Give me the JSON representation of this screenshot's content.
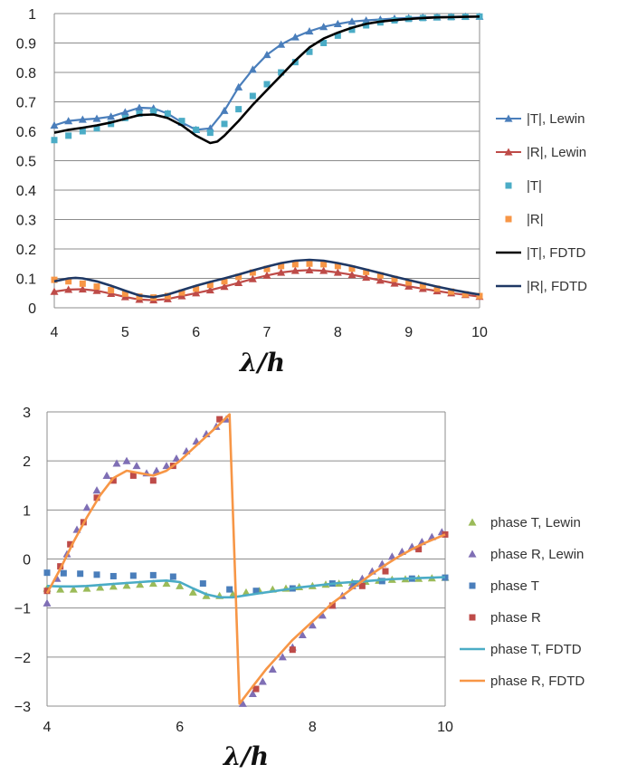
{
  "chart_data": [
    {
      "type": "line",
      "xlabel": "λ/h",
      "ylabel": "",
      "xlim": [
        4,
        10
      ],
      "ylim": [
        0,
        1
      ],
      "xticks": [
        4,
        5,
        6,
        7,
        8,
        9,
        10
      ],
      "yticks": [
        0,
        0.1,
        0.2,
        0.3,
        0.4,
        0.5,
        0.6,
        0.7,
        0.8,
        0.9,
        1
      ],
      "grid": "horizontal",
      "legend": "right",
      "series": [
        {
          "name": "|T|, Lewin",
          "style": "line-triangle",
          "color": "#4a7ebb",
          "x": [
            4.0,
            4.2,
            4.4,
            4.6,
            4.8,
            5.0,
            5.2,
            5.4,
            5.6,
            5.8,
            6.0,
            6.2,
            6.4,
            6.6,
            6.8,
            7.0,
            7.2,
            7.4,
            7.6,
            7.8,
            8.0,
            8.2,
            8.4,
            8.6,
            8.8,
            9.0,
            9.2,
            9.4,
            9.6,
            9.8,
            10.0
          ],
          "y": [
            0.62,
            0.635,
            0.64,
            0.643,
            0.65,
            0.665,
            0.68,
            0.678,
            0.66,
            0.63,
            0.605,
            0.61,
            0.67,
            0.75,
            0.81,
            0.86,
            0.895,
            0.92,
            0.94,
            0.955,
            0.965,
            0.973,
            0.977,
            0.98,
            0.983,
            0.985,
            0.987,
            0.988,
            0.989,
            0.99,
            0.99
          ]
        },
        {
          "name": "|R|, Lewin",
          "style": "line-triangle",
          "color": "#be4b48",
          "x": [
            4.0,
            4.2,
            4.4,
            4.6,
            4.8,
            5.0,
            5.2,
            5.4,
            5.6,
            5.8,
            6.0,
            6.2,
            6.4,
            6.6,
            6.8,
            7.0,
            7.2,
            7.4,
            7.6,
            7.8,
            8.0,
            8.2,
            8.4,
            8.6,
            8.8,
            9.0,
            9.2,
            9.4,
            9.6,
            9.8,
            10.0
          ],
          "y": [
            0.055,
            0.062,
            0.063,
            0.058,
            0.048,
            0.037,
            0.028,
            0.026,
            0.03,
            0.04,
            0.05,
            0.06,
            0.072,
            0.085,
            0.098,
            0.11,
            0.12,
            0.126,
            0.128,
            0.126,
            0.12,
            0.112,
            0.103,
            0.093,
            0.083,
            0.073,
            0.065,
            0.057,
            0.05,
            0.044,
            0.038
          ]
        },
        {
          "name": "|T|",
          "style": "square",
          "color": "#4bacc6",
          "x": [
            4.0,
            4.2,
            4.4,
            4.6,
            4.8,
            5.0,
            5.2,
            5.4,
            5.6,
            5.8,
            6.0,
            6.2,
            6.4,
            6.6,
            6.8,
            7.0,
            7.2,
            7.4,
            7.6,
            7.8,
            8.0,
            8.2,
            8.4,
            8.6,
            8.8,
            9.0,
            9.2,
            9.4,
            9.6,
            9.8,
            10.0
          ],
          "y": [
            0.57,
            0.585,
            0.6,
            0.61,
            0.625,
            0.645,
            0.66,
            0.668,
            0.66,
            0.635,
            0.605,
            0.595,
            0.625,
            0.675,
            0.72,
            0.76,
            0.8,
            0.835,
            0.87,
            0.9,
            0.925,
            0.945,
            0.96,
            0.97,
            0.977,
            0.982,
            0.985,
            0.987,
            0.988,
            0.989,
            0.99
          ]
        },
        {
          "name": "|R|",
          "style": "square",
          "color": "#f79646",
          "x": [
            4.0,
            4.2,
            4.4,
            4.6,
            4.8,
            5.0,
            5.2,
            5.4,
            5.6,
            5.8,
            6.0,
            6.2,
            6.4,
            6.6,
            6.8,
            7.0,
            7.2,
            7.4,
            7.6,
            7.8,
            8.0,
            8.2,
            8.4,
            8.6,
            8.8,
            9.0,
            9.2,
            9.4,
            9.6,
            9.8,
            10.0
          ],
          "y": [
            0.095,
            0.09,
            0.082,
            0.072,
            0.06,
            0.048,
            0.038,
            0.035,
            0.04,
            0.052,
            0.065,
            0.078,
            0.09,
            0.105,
            0.12,
            0.132,
            0.142,
            0.148,
            0.15,
            0.148,
            0.142,
            0.133,
            0.122,
            0.11,
            0.098,
            0.086,
            0.075,
            0.065,
            0.055,
            0.046,
            0.04
          ]
        },
        {
          "name": "|T|, FDTD",
          "style": "line",
          "color": "#000000",
          "x": [
            4.0,
            4.2,
            4.4,
            4.6,
            4.8,
            5.0,
            5.2,
            5.4,
            5.6,
            5.8,
            6.0,
            6.2,
            6.3,
            6.4,
            6.6,
            6.8,
            7.0,
            7.2,
            7.4,
            7.6,
            7.8,
            8.0,
            8.2,
            8.4,
            8.6,
            8.8,
            9.0,
            9.2,
            9.4,
            9.6,
            9.8,
            10.0
          ],
          "y": [
            0.595,
            0.605,
            0.612,
            0.62,
            0.63,
            0.642,
            0.655,
            0.657,
            0.645,
            0.62,
            0.585,
            0.56,
            0.565,
            0.585,
            0.635,
            0.69,
            0.74,
            0.79,
            0.84,
            0.885,
            0.915,
            0.935,
            0.952,
            0.965,
            0.973,
            0.978,
            0.982,
            0.985,
            0.987,
            0.988,
            0.989,
            0.99
          ]
        },
        {
          "name": "|R|, FDTD",
          "style": "line",
          "color": "#1f3864",
          "x": [
            4.0,
            4.2,
            4.3,
            4.4,
            4.6,
            4.8,
            5.0,
            5.2,
            5.4,
            5.6,
            5.8,
            6.0,
            6.2,
            6.4,
            6.6,
            6.8,
            7.0,
            7.2,
            7.4,
            7.6,
            7.8,
            8.0,
            8.2,
            8.4,
            8.6,
            8.8,
            9.0,
            9.2,
            9.4,
            9.6,
            9.8,
            10.0
          ],
          "y": [
            0.09,
            0.1,
            0.102,
            0.1,
            0.09,
            0.075,
            0.058,
            0.042,
            0.036,
            0.045,
            0.06,
            0.075,
            0.088,
            0.1,
            0.113,
            0.127,
            0.14,
            0.152,
            0.16,
            0.163,
            0.16,
            0.152,
            0.142,
            0.13,
            0.118,
            0.106,
            0.094,
            0.083,
            0.072,
            0.062,
            0.053,
            0.045
          ]
        }
      ]
    },
    {
      "type": "line",
      "xlabel": "λ/h",
      "ylabel": "",
      "xlim": [
        4,
        10
      ],
      "ylim": [
        -3,
        3
      ],
      "xticks": [
        4,
        6,
        8,
        10
      ],
      "yticks": [
        -3,
        -2,
        -1,
        0,
        1,
        2,
        3
      ],
      "grid": "horizontal",
      "legend": "right",
      "series": [
        {
          "name": "phase T, Lewin",
          "style": "triangle",
          "color": "#9bbb59",
          "x": [
            4.0,
            4.2,
            4.4,
            4.6,
            4.8,
            5.0,
            5.2,
            5.4,
            5.6,
            5.8,
            6.0,
            6.2,
            6.4,
            6.6,
            6.8,
            7.0,
            7.2,
            7.4,
            7.6,
            7.8,
            8.0,
            8.2,
            8.4,
            8.6,
            8.8,
            9.0,
            9.2,
            9.4,
            9.6,
            9.8,
            10.0
          ],
          "y": [
            -0.6,
            -0.62,
            -0.62,
            -0.6,
            -0.58,
            -0.56,
            -0.54,
            -0.52,
            -0.5,
            -0.5,
            -0.55,
            -0.68,
            -0.75,
            -0.75,
            -0.72,
            -0.68,
            -0.65,
            -0.62,
            -0.6,
            -0.57,
            -0.55,
            -0.52,
            -0.5,
            -0.48,
            -0.46,
            -0.44,
            -0.42,
            -0.41,
            -0.4,
            -0.39,
            -0.38
          ]
        },
        {
          "name": "phase R, Lewin",
          "style": "triangle",
          "color": "#7f6fb5",
          "x": [
            4.0,
            4.15,
            4.3,
            4.45,
            4.6,
            4.75,
            4.9,
            5.05,
            5.2,
            5.35,
            5.5,
            5.65,
            5.8,
            5.95,
            6.1,
            6.25,
            6.4,
            6.55,
            6.7,
            6.95,
            7.1,
            7.25,
            7.4,
            7.55,
            7.7,
            7.85,
            8.0,
            8.15,
            8.3,
            8.45,
            8.6,
            8.75,
            8.9,
            9.05,
            9.2,
            9.35,
            9.5,
            9.65,
            9.8,
            9.95
          ],
          "y": [
            -0.9,
            -0.4,
            0.1,
            0.6,
            1.05,
            1.4,
            1.7,
            1.95,
            2.0,
            1.9,
            1.75,
            1.8,
            1.9,
            2.05,
            2.2,
            2.4,
            2.55,
            2.7,
            2.85,
            -2.95,
            -2.75,
            -2.5,
            -2.25,
            -2.0,
            -1.8,
            -1.55,
            -1.35,
            -1.15,
            -0.95,
            -0.75,
            -0.55,
            -0.4,
            -0.25,
            -0.1,
            0.05,
            0.15,
            0.25,
            0.35,
            0.45,
            0.55
          ]
        },
        {
          "name": "phase T",
          "style": "square",
          "color": "#4a7ebb",
          "x": [
            4.0,
            4.25,
            4.5,
            4.75,
            5.0,
            5.3,
            5.6,
            5.9,
            6.35,
            6.75,
            7.15,
            7.7,
            8.3,
            8.65,
            9.05,
            9.5,
            10.0
          ],
          "y": [
            -0.28,
            -0.29,
            -0.3,
            -0.32,
            -0.35,
            -0.34,
            -0.33,
            -0.36,
            -0.5,
            -0.62,
            -0.65,
            -0.6,
            -0.5,
            -0.5,
            -0.45,
            -0.4,
            -0.38
          ]
        },
        {
          "name": "phase R",
          "style": "square",
          "color": "#be4b48",
          "x": [
            4.0,
            4.2,
            4.35,
            4.55,
            4.75,
            5.0,
            5.3,
            5.6,
            5.9,
            6.6,
            7.15,
            7.7,
            8.3,
            8.75,
            9.1,
            9.6,
            10.0
          ],
          "y": [
            -0.65,
            -0.15,
            0.3,
            0.75,
            1.25,
            1.6,
            1.7,
            1.6,
            1.9,
            2.85,
            -2.65,
            -1.85,
            -0.95,
            -0.55,
            -0.25,
            0.2,
            0.5
          ]
        },
        {
          "name": "phase T, FDTD",
          "style": "line",
          "color": "#4bacc6",
          "x": [
            4.0,
            4.2,
            4.4,
            4.6,
            4.8,
            5.0,
            5.2,
            5.4,
            5.6,
            5.8,
            6.0,
            6.2,
            6.4,
            6.6,
            6.8,
            7.0,
            7.2,
            7.4,
            7.6,
            7.8,
            8.0,
            8.2,
            8.4,
            8.6,
            8.8,
            9.0,
            9.2,
            9.4,
            9.6,
            9.8,
            10.0
          ],
          "y": [
            -0.55,
            -0.56,
            -0.56,
            -0.55,
            -0.53,
            -0.51,
            -0.49,
            -0.47,
            -0.45,
            -0.44,
            -0.47,
            -0.6,
            -0.72,
            -0.78,
            -0.78,
            -0.74,
            -0.7,
            -0.66,
            -0.62,
            -0.58,
            -0.55,
            -0.52,
            -0.49,
            -0.47,
            -0.45,
            -0.43,
            -0.41,
            -0.4,
            -0.39,
            -0.38,
            -0.37
          ]
        },
        {
          "name": "phase R, FDTD",
          "style": "line",
          "color": "#f79646",
          "x": [
            4.0,
            4.2,
            4.4,
            4.6,
            4.8,
            5.0,
            5.2,
            5.4,
            5.6,
            5.8,
            6.0,
            6.2,
            6.4,
            6.6,
            6.75,
            6.9,
            7.1,
            7.3,
            7.5,
            7.7,
            7.9,
            8.1,
            8.3,
            8.5,
            8.7,
            8.9,
            9.1,
            9.3,
            9.5,
            9.7,
            10.0
          ],
          "y": [
            -0.7,
            -0.2,
            0.35,
            0.85,
            1.3,
            1.65,
            1.8,
            1.75,
            1.7,
            1.8,
            2.0,
            2.25,
            2.5,
            2.75,
            2.95,
            -2.95,
            -2.6,
            -2.25,
            -1.95,
            -1.65,
            -1.4,
            -1.15,
            -0.9,
            -0.7,
            -0.5,
            -0.3,
            -0.12,
            0.05,
            0.2,
            0.33,
            0.5
          ]
        }
      ]
    }
  ]
}
